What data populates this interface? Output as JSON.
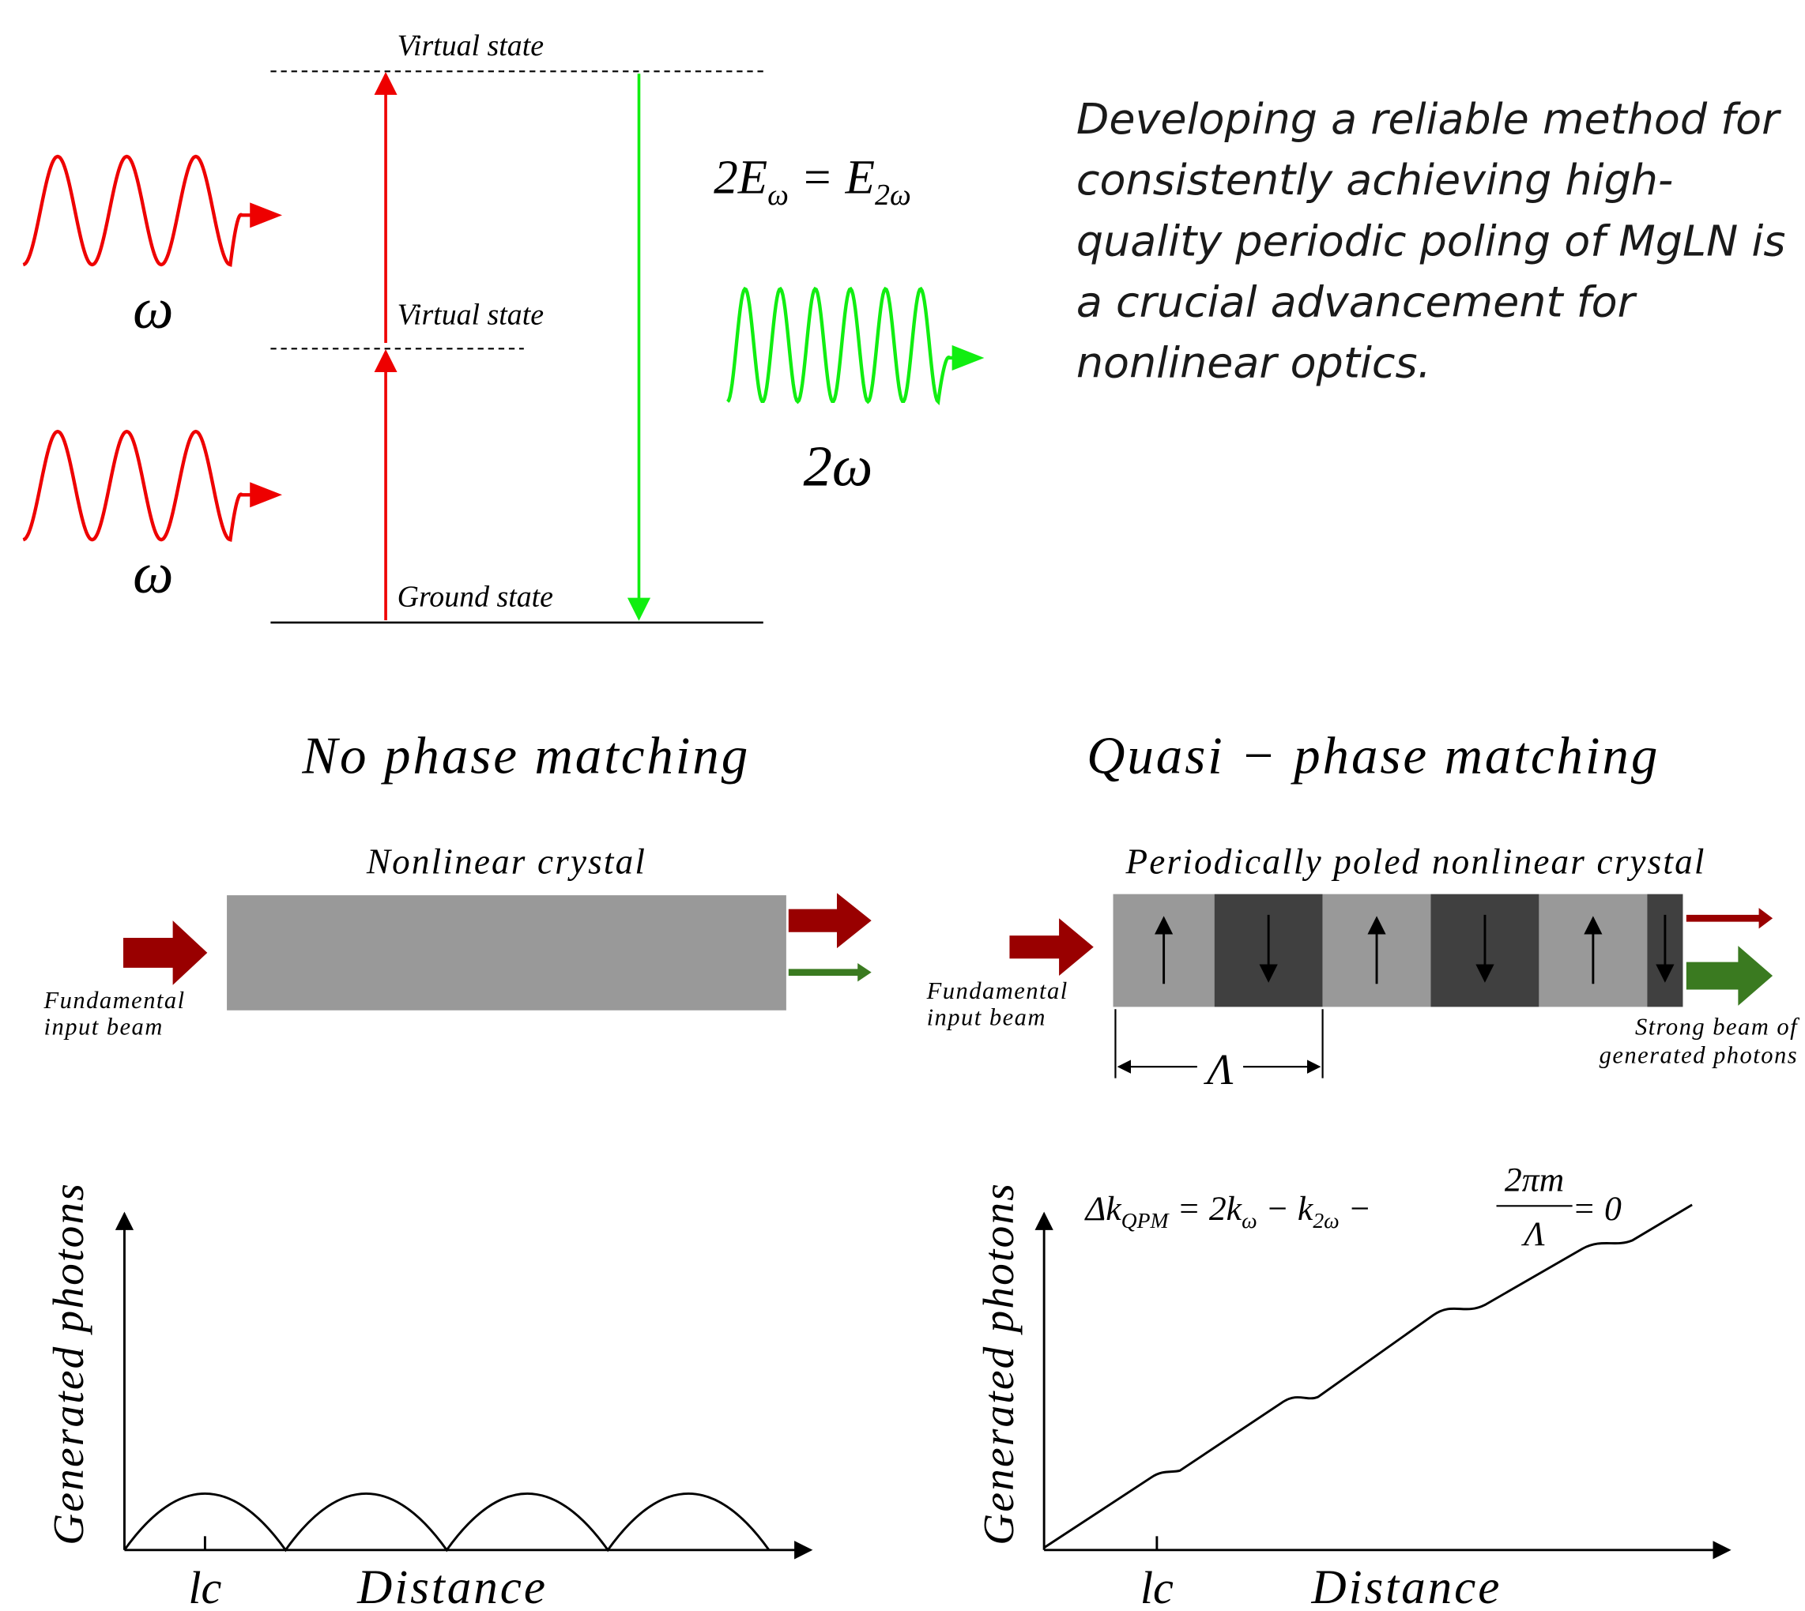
{
  "levels": {
    "virtual_top": "Virtual state",
    "virtual_mid": "Virtual state",
    "ground": "Ground state"
  },
  "photons": {
    "input_1": "ω",
    "input_2": "ω",
    "output": "2ω"
  },
  "energy_equation": {
    "lhs": "2E",
    "lhs_sub": "ω",
    "mid": " = E",
    "rhs_sub": "2ω"
  },
  "statement": [
    "Developing a reliable method for",
    "consistently achieving high-",
    "quality periodic poling of MgLN is",
    "a crucial advancement for",
    "nonlinear optics."
  ],
  "no_pm": {
    "title": "No phase matching",
    "crystal": "Nonlinear crystal",
    "input": [
      "Fundamental",
      "input beam"
    ],
    "plot": {
      "y_label": "Generated photons",
      "x_label": "Distance",
      "tick": "lc"
    }
  },
  "qpm": {
    "title": "Quasi − phase matching",
    "crystal": "Periodically poled nonlinear crystal",
    "input": [
      "Fundamental",
      "input beam"
    ],
    "output": [
      "Strong beam of",
      "generated photons"
    ],
    "period": "Λ",
    "equation": {
      "lhs": "Δk",
      "lhs_sub": "QPM",
      "mid": " = 2k",
      "sub1": "ω",
      "minus": " − k",
      "sub2": "2ω",
      "minus2": " − ",
      "num": "2πm",
      "den": "Λ",
      "end": " = 0"
    },
    "plot": {
      "y_label": "Generated photons",
      "x_label": "Distance",
      "tick": "lc"
    }
  }
}
